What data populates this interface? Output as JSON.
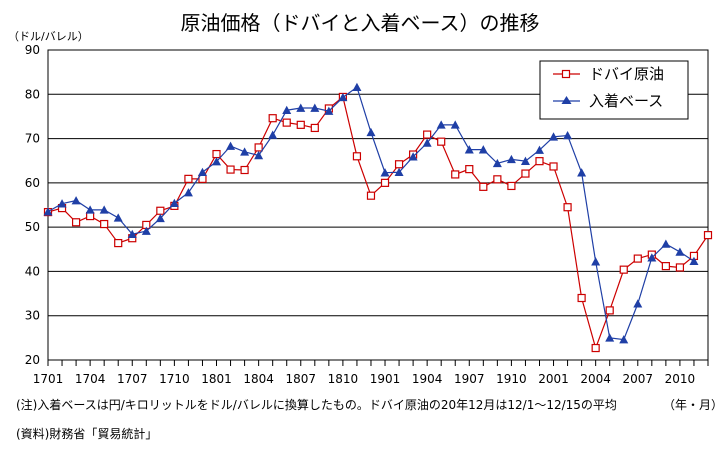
{
  "chart_data": {
    "type": "line",
    "title": "原油価格（ドバイと入着ベース）の推移",
    "y_unit": "（ドル/バレル）",
    "x_unit": "（年・月）",
    "ylim": [
      20,
      90
    ],
    "y_ticks": [
      20,
      30,
      40,
      50,
      60,
      70,
      80,
      90
    ],
    "grid": true,
    "legend_position": "top-right",
    "x_tick_labels": [
      "1701",
      "1704",
      "1707",
      "1710",
      "1801",
      "1804",
      "1807",
      "1810",
      "1901",
      "1904",
      "1907",
      "1910",
      "2001",
      "2004",
      "2007",
      "2010"
    ],
    "x_start_label": "1701",
    "x_step_months": 1,
    "series": [
      {
        "name": "ドバイ原油",
        "color": "#cc0000",
        "marker": "hollow-square",
        "values": [
          53.4,
          54.3,
          51.1,
          52.5,
          50.7,
          46.4,
          47.5,
          50.5,
          53.7,
          54.8,
          60.9,
          60.9,
          66.5,
          63.0,
          62.9,
          68.0,
          74.6,
          73.6,
          73.1,
          72.4,
          76.8,
          79.4,
          66.0,
          57.1,
          60.0,
          64.2,
          66.4,
          70.9,
          69.3,
          61.9,
          63.1,
          59.1,
          60.8,
          59.3,
          62.1,
          64.9,
          63.7,
          54.5,
          34.0,
          22.7,
          31.2,
          40.4,
          42.9,
          43.8,
          41.2,
          40.9,
          43.5,
          48.2
        ]
      },
      {
        "name": "入着ベース",
        "color": "#1f3fa6",
        "marker": "filled-triangle",
        "values": [
          53.5,
          55.3,
          56.0,
          53.9,
          53.9,
          52.1,
          48.4,
          49.1,
          52.0,
          55.4,
          57.8,
          62.4,
          64.8,
          68.3,
          67.0,
          66.2,
          70.8,
          76.4,
          76.9,
          76.9,
          76.2,
          79.3,
          81.6,
          71.4,
          62.3,
          62.4,
          65.9,
          69.0,
          73.1,
          73.1,
          67.5,
          67.5,
          64.4,
          65.3,
          64.9,
          67.4,
          70.4,
          70.7,
          62.3,
          42.2,
          25.0,
          24.6,
          32.7,
          43.1,
          46.2,
          44.4,
          42.3
        ]
      }
    ]
  },
  "notes": {
    "note": "(注)入着ベースは円/キロリットルをドル/バレルに換算したもの。ドバイ原油の20年12月は12/1～12/15の平均",
    "source": "(資料)財務省「貿易統計」"
  }
}
